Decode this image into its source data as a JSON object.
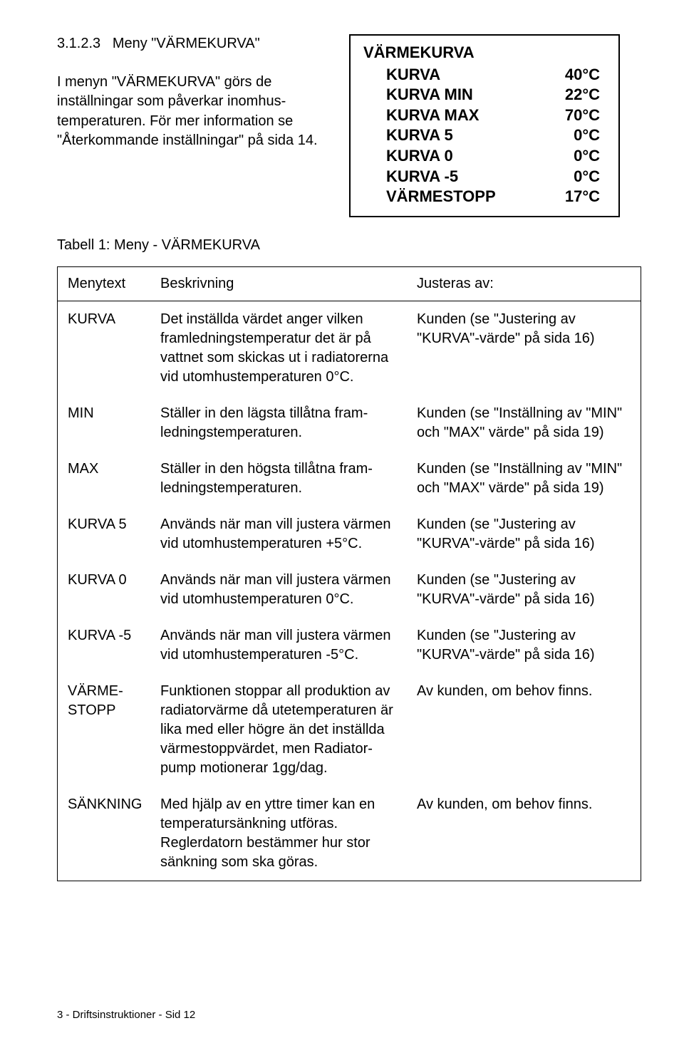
{
  "section": {
    "number": "3.1.2.3",
    "title": "Meny \"VÄRMEKURVA\"",
    "paragraph": "I menyn \"VÄRMEKURVA\" görs de inställningar som påverkar inomhus-temperaturen. För mer information se \"Återkommande inställningar\" på sida 14."
  },
  "display": {
    "title": "VÄRMEKURVA",
    "background_color": "#ffffff",
    "border_color": "#000000",
    "font_weight": "bold",
    "font_size_pt": 16,
    "rows": [
      {
        "label": "KURVA",
        "value": "40°C"
      },
      {
        "label": "KURVA MIN",
        "value": "22°C"
      },
      {
        "label": "KURVA MAX",
        "value": "70°C"
      },
      {
        "label": "KURVA  5",
        "value": "0°C"
      },
      {
        "label": "KURVA  0",
        "value": "0°C"
      },
      {
        "label": "KURVA -5",
        "value": "0°C"
      },
      {
        "label": "VÄRMESTOPP",
        "value": "17°C"
      }
    ]
  },
  "table": {
    "caption": "Tabell 1: Meny - VÄRMEKURVA",
    "border_color": "#000000",
    "font_size_pt": 15,
    "columns": {
      "menytext": "Menytext",
      "beskrivning": "Beskrivning",
      "justeras": "Justeras av:"
    },
    "rows": [
      {
        "menytext": "KURVA",
        "beskrivning": "Det inställda värdet anger vilken framledningstemperatur det är på vattnet som skickas ut i radiatorerna vid utomhustemperaturen 0°C.",
        "justeras": "Kunden (se \"Justering av \"KURVA\"-värde\" på sida 16)"
      },
      {
        "menytext": "MIN",
        "beskrivning": "Ställer in den lägsta tillåtna fram-ledningstemperaturen.",
        "justeras": "Kunden (se \"Inställning av \"MIN\" och \"MAX\" värde\" på sida 19)"
      },
      {
        "menytext": "MAX",
        "beskrivning": "Ställer in den högsta tillåtna fram-ledningstemperaturen.",
        "justeras": "Kunden (se \"Inställning av \"MIN\" och \"MAX\" värde\" på sida 19)"
      },
      {
        "menytext": "KURVA 5",
        "beskrivning": "Används när man vill justera värmen vid utomhustemperaturen +5°C.",
        "justeras": "Kunden (se \"Justering av \"KURVA\"-värde\" på sida 16)"
      },
      {
        "menytext": "KURVA 0",
        "beskrivning": "Används när man vill justera värmen vid utomhustemperaturen 0°C.",
        "justeras": "Kunden (se \"Justering av \"KURVA\"-värde\" på sida 16)"
      },
      {
        "menytext": "KURVA -5",
        "beskrivning": "Används när man vill justera värmen vid utomhustemperaturen -5°C.",
        "justeras": "Kunden (se \"Justering av \"KURVA\"-värde\" på sida 16)"
      },
      {
        "menytext": "VÄRME-STOPP",
        "beskrivning": "Funktionen stoppar all produktion av radiatorvärme då utetemperaturen är lika med eller högre än det inställda värmestoppvärdet, men Radiator-pump motionerar 1gg/dag.",
        "justeras": "Av kunden, om behov finns."
      },
      {
        "menytext": "SÄNKNING",
        "beskrivning": "Med hjälp av en yttre timer kan en temperatursänkning utföras. Reglerdatorn bestämmer hur stor sänkning som ska göras.",
        "justeras": "Av kunden, om behov finns."
      }
    ]
  },
  "footer": "3 - Driftsinstruktioner - Sid 12"
}
